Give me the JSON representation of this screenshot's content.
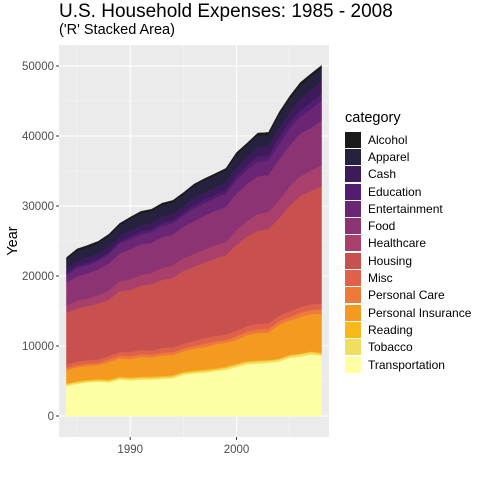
{
  "title": "U.S. Household Expenses: 1985 - 2008",
  "subtitle": "('R' Stacked Area)",
  "chart_data": {
    "type": "area",
    "stacked": true,
    "ylabel": "Year",
    "xlabel": "",
    "xlim": [
      1983.3,
      2008.7
    ],
    "ylim": [
      -3000,
      53000
    ],
    "x_ticks": [
      1990,
      2000
    ],
    "y_ticks": [
      0,
      10000,
      20000,
      30000,
      40000,
      50000
    ],
    "grid": true,
    "legend_title": "category",
    "legend_position": "right",
    "years": [
      1984,
      1985,
      1986,
      1987,
      1988,
      1989,
      1990,
      1991,
      1992,
      1993,
      1994,
      1995,
      1996,
      1997,
      1998,
      1999,
      2000,
      2001,
      2002,
      2003,
      2004,
      2005,
      2006,
      2007,
      2008
    ],
    "series": [
      {
        "name": "Alcohol",
        "color": "#1a1a1a",
        "values": [
          280,
          300,
          300,
          300,
          290,
          280,
          290,
          300,
          300,
          270,
          280,
          280,
          310,
          310,
          310,
          320,
          370,
          350,
          380,
          390,
          460,
          430,
          500,
          450,
          450
        ]
      },
      {
        "name": "Apparel",
        "color": "#26213f",
        "values": [
          1300,
          1400,
          1400,
          1400,
          1500,
          1500,
          1600,
          1700,
          1700,
          1700,
          1700,
          1700,
          1700,
          1700,
          1700,
          1700,
          1800,
          1700,
          1700,
          1600,
          1800,
          1900,
          1900,
          1900,
          1800
        ]
      },
      {
        "name": "Cash",
        "color": "#3d1a5c",
        "values": [
          700,
          700,
          800,
          800,
          800,
          800,
          900,
          900,
          900,
          900,
          900,
          900,
          1000,
          1000,
          1000,
          1100,
          1200,
          1200,
          1300,
          1300,
          1400,
          1400,
          1600,
          1800,
          1800
        ]
      },
      {
        "name": "Education",
        "color": "#521d6e",
        "values": [
          300,
          300,
          300,
          300,
          300,
          300,
          400,
          400,
          400,
          400,
          400,
          400,
          500,
          500,
          500,
          500,
          600,
          600,
          700,
          700,
          900,
          900,
          900,
          900,
          1000
        ]
      },
      {
        "name": "Entertainment",
        "color": "#6a2575",
        "values": [
          1000,
          1200,
          1200,
          1200,
          1300,
          1400,
          1400,
          1400,
          1500,
          1600,
          1600,
          1600,
          1800,
          1800,
          1800,
          1900,
          1900,
          2000,
          2100,
          2100,
          2200,
          2400,
          2400,
          2700,
          2800
        ]
      },
      {
        "name": "Food",
        "color": "#8c3373",
        "values": [
          3300,
          3500,
          3600,
          3700,
          3900,
          4000,
          4300,
          4400,
          4300,
          4400,
          4400,
          4500,
          4700,
          4800,
          4900,
          5000,
          5200,
          5300,
          5400,
          5300,
          5800,
          5900,
          6100,
          6100,
          6400
        ]
      },
      {
        "name": "Healthcare",
        "color": "#a93f6b",
        "values": [
          1000,
          1100,
          1100,
          1200,
          1300,
          1400,
          1500,
          1500,
          1600,
          1700,
          1800,
          1800,
          1800,
          1900,
          1900,
          1900,
          2100,
          2200,
          2400,
          2400,
          2600,
          2700,
          2800,
          2900,
          3000
        ]
      },
      {
        "name": "Housing",
        "color": "#c8504e",
        "values": [
          7400,
          7600,
          7700,
          8000,
          8000,
          8700,
          8900,
          9200,
          9500,
          9700,
          9900,
          10400,
          10600,
          10800,
          11100,
          11300,
          12300,
          12800,
          13300,
          13500,
          13900,
          15100,
          15900,
          16200,
          16800
        ]
      },
      {
        "name": "Misc",
        "color": "#e0614b",
        "values": [
          500,
          500,
          500,
          500,
          500,
          500,
          600,
          600,
          600,
          700,
          700,
          700,
          700,
          800,
          800,
          800,
          800,
          800,
          800,
          800,
          800,
          800,
          800,
          800,
          800
        ]
      },
      {
        "name": "Personal Care",
        "color": "#ee7a3a",
        "values": [
          300,
          300,
          300,
          300,
          400,
          400,
          400,
          400,
          400,
          400,
          400,
          400,
          400,
          500,
          400,
          400,
          500,
          500,
          500,
          500,
          500,
          500,
          600,
          600,
          600
        ]
      },
      {
        "name": "Personal Insurance",
        "color": "#f59a21",
        "values": [
          1900,
          2000,
          2000,
          2000,
          2500,
          2600,
          2600,
          2800,
          2700,
          2900,
          2900,
          2900,
          3100,
          3200,
          3400,
          3400,
          3400,
          3700,
          3900,
          3900,
          4800,
          4900,
          5200,
          5300,
          5600
        ]
      },
      {
        "name": "Reading",
        "color": "#f8b81a",
        "values": [
          130,
          140,
          140,
          140,
          150,
          160,
          150,
          160,
          160,
          170,
          160,
          160,
          160,
          160,
          160,
          160,
          150,
          140,
          130,
          130,
          130,
          130,
          120,
          120,
          120
        ]
      },
      {
        "name": "Tobacco",
        "color": "#f2de5e",
        "values": [
          230,
          230,
          240,
          230,
          240,
          270,
          270,
          280,
          280,
          270,
          260,
          270,
          260,
          260,
          270,
          300,
          320,
          310,
          320,
          290,
          290,
          320,
          330,
          320,
          320
        ]
      },
      {
        "name": "Transportation",
        "color": "#fcffa4",
        "values": [
          4300,
          4600,
          4800,
          4900,
          4800,
          5200,
          5100,
          5200,
          5200,
          5300,
          5400,
          5900,
          6100,
          6200,
          6400,
          6600,
          7000,
          7400,
          7500,
          7600,
          7800,
          8300,
          8500,
          8800,
          8600
        ]
      }
    ]
  }
}
